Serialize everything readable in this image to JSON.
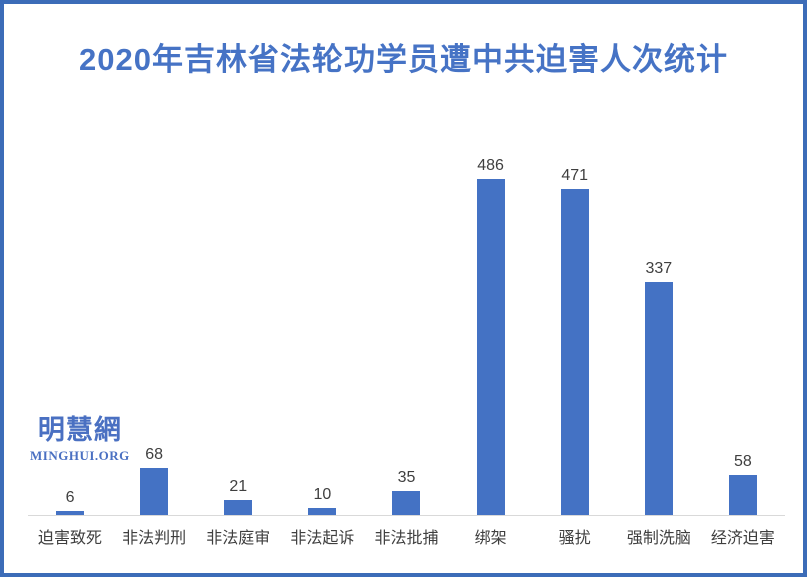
{
  "page": {
    "background_color": "#ffffff",
    "border_color": "#3c6cb8"
  },
  "title": {
    "text": "2020年吉林省法轮功学员遭中共迫害人次统计",
    "color": "#4673c5"
  },
  "watermark": {
    "cjk": "明慧網",
    "latin": "MINGHUI.ORG",
    "color": "#4a70c2"
  },
  "chart_data": {
    "type": "bar",
    "title": "2020年吉林省法轮功学员遭中共迫害人次统计",
    "categories": [
      "迫害致死",
      "非法判刑",
      "非法庭审",
      "非法起诉",
      "非法批捕",
      "绑架",
      "骚扰",
      "强制洗脑",
      "经济迫害"
    ],
    "values": [
      6,
      68,
      21,
      10,
      35,
      486,
      471,
      337,
      58
    ],
    "xlabel": "",
    "ylabel": "",
    "ylim": [
      0,
      500
    ],
    "bar_color": "#4472c4",
    "value_label_color": "#3f3f3f",
    "category_label_color": "#3f3f3f",
    "axis_line_color": "#d9d9d9",
    "gridlines": false,
    "legend": false,
    "value_labels_shown": true
  }
}
